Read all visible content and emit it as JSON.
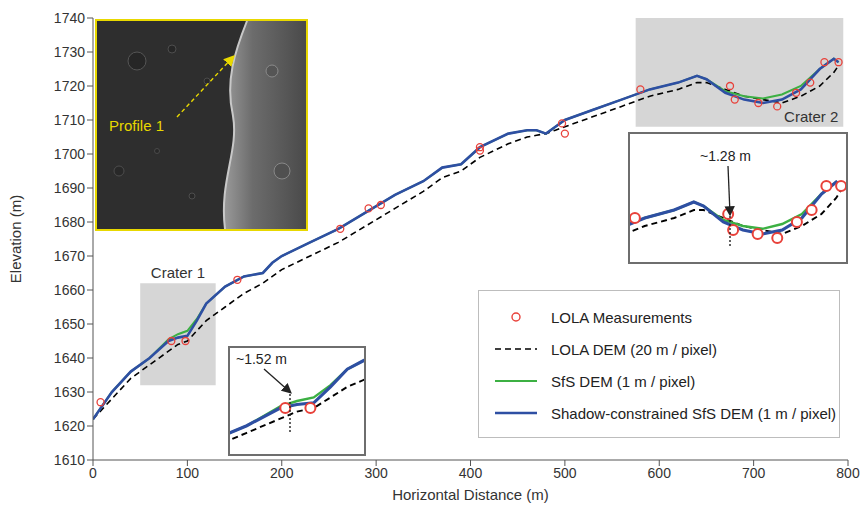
{
  "chart_data": {
    "type": "line",
    "xlabel": "Horizontal Distance (m)",
    "ylabel": "Elevation (m)",
    "xlim": [
      0,
      800
    ],
    "xticks": [
      0,
      100,
      200,
      300,
      400,
      500,
      600,
      700,
      800
    ],
    "ylim": [
      1610,
      1740
    ],
    "yticks": [
      1610,
      1620,
      1630,
      1640,
      1650,
      1660,
      1670,
      1680,
      1690,
      1700,
      1710,
      1720,
      1730,
      1740
    ],
    "grid": false,
    "legend": "lower right",
    "x": [
      0,
      20,
      40,
      60,
      80,
      90,
      100,
      110,
      120,
      140,
      160,
      180,
      190,
      200,
      230,
      260,
      290,
      320,
      350,
      370,
      390,
      410,
      440,
      460,
      470,
      480,
      490,
      500,
      530,
      560,
      590,
      620,
      640,
      650,
      670,
      690,
      710,
      730,
      750,
      770,
      785,
      790
    ],
    "series": [
      {
        "name": "LOLA Measurements",
        "type": "scatter",
        "marker": "circle",
        "color": "#e8413a",
        "x": [
          8,
          83,
          98,
          153,
          262,
          292,
          305,
          410,
          410,
          497,
          500,
          580,
          675,
          680,
          705,
          725,
          745,
          760,
          775,
          790
        ],
        "values": [
          1627,
          1645,
          1645,
          1663,
          1678,
          1684,
          1685,
          1702,
          1701,
          1709,
          1706,
          1719,
          1720,
          1716,
          1715,
          1714,
          1718,
          1721,
          1727,
          1727
        ]
      },
      {
        "name": "LOLA DEM (20 m / pixel)",
        "type": "line",
        "line_style": "dashed",
        "color": "#000000",
        "values": [
          1622,
          1628,
          1634,
          1638,
          1642,
          1644,
          1645,
          1648,
          1651,
          1655,
          1659,
          1662,
          1664,
          1666,
          1670,
          1674,
          1679,
          1684,
          1689,
          1693,
          1695,
          1699,
          1703,
          1705,
          1705.5,
          1706,
          1707,
          1708,
          1711,
          1714,
          1717,
          1719,
          1721,
          1721,
          1719,
          1717,
          1716,
          1715,
          1717,
          1720,
          1724,
          1726
        ]
      },
      {
        "name": "SfS DEM (1 m / pixel)",
        "type": "line",
        "line_style": "solid",
        "color": "#3cb043",
        "values": [
          1622,
          1630,
          1636,
          1640,
          1645.5,
          1647,
          1648,
          1651.5,
          1656,
          1661,
          1664,
          1665,
          1668,
          1670,
          1674,
          1678,
          1683,
          1688,
          1692,
          1696,
          1697,
          1702,
          1706,
          1707,
          1707,
          1706,
          1708,
          1710,
          1713,
          1716,
          1719,
          1721,
          1723,
          1722,
          1718.5,
          1717,
          1716.3,
          1717.5,
          1720,
          1725,
          1728,
          1727
        ]
      },
      {
        "name": "Shadow-constrained SfS DEM (1 m / pixel)",
        "type": "line",
        "line_style": "solid",
        "color": "#2e4fa3",
        "values": [
          1622,
          1630,
          1636,
          1640,
          1645,
          1646,
          1646.5,
          1651,
          1656,
          1661,
          1664,
          1665,
          1668,
          1670,
          1674,
          1678,
          1683,
          1688,
          1692,
          1696,
          1697,
          1702,
          1706,
          1707,
          1707,
          1706,
          1708,
          1710,
          1713,
          1716,
          1719,
          1721,
          1723,
          1722,
          1718,
          1716,
          1715,
          1716,
          1719,
          1725,
          1728,
          1727
        ]
      }
    ],
    "regions": [
      {
        "label": "Crater 1",
        "x": [
          50,
          130
        ],
        "y": [
          1632,
          1662
        ],
        "zoom_label": "~1.52 m"
      },
      {
        "label": "Crater 2",
        "x": [
          575,
          795
        ],
        "y": [
          1708,
          1740
        ],
        "zoom_label": "~1.28 m"
      }
    ],
    "image_inset": {
      "label": "Profile 1"
    }
  }
}
